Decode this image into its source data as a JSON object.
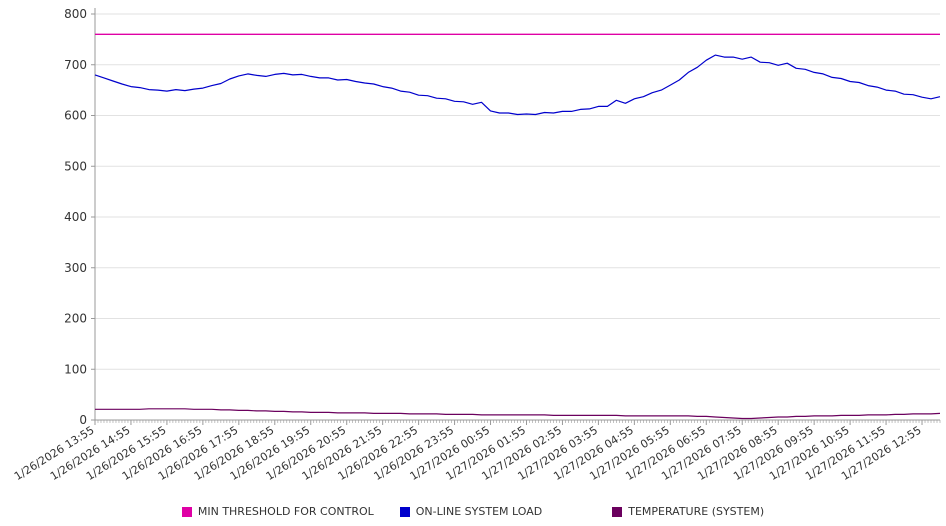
{
  "theme": {
    "background": "#ffffff",
    "grid_color": "#e2e2e2",
    "axis_color": "#999999",
    "text_color": "#333333"
  },
  "chart_data": {
    "type": "line",
    "title": "",
    "xlabel": "",
    "ylabel": "",
    "ylim": [
      0,
      800
    ],
    "y_ticks": [
      0,
      100,
      200,
      300,
      400,
      500,
      600,
      700,
      800
    ],
    "grid": "horizontal",
    "legend_position": "bottom",
    "x_hours_span": 23.5,
    "x_step_hours": 0.25,
    "minor_ticks_per_hour": 12,
    "x_tick_labels": [
      "1/26/2026 13:55",
      "1/26/2026 14:55",
      "1/26/2026 15:55",
      "1/26/2026 16:55",
      "1/26/2026 17:55",
      "1/26/2026 18:55",
      "1/26/2026 19:55",
      "1/26/2026 20:55",
      "1/26/2026 21:55",
      "1/26/2026 22:55",
      "1/26/2026 23:55",
      "1/27/2026 00:55",
      "1/27/2026 01:55",
      "1/27/2026 02:55",
      "1/27/2026 03:55",
      "1/27/2026 04:55",
      "1/27/2026 05:55",
      "1/27/2026 06:55",
      "1/27/2026 07:55",
      "1/27/2026 08:55",
      "1/27/2026 09:55",
      "1/27/2026 10:55",
      "1/27/2026 11:55",
      "1/27/2026 12:55"
    ],
    "series": [
      {
        "name": "MIN THRESHOLD FOR CONTROL",
        "color": "#df00a5",
        "constant": 760
      },
      {
        "name": "ON-LINE SYSTEM LOAD",
        "color": "#0000cc",
        "values": [
          680,
          674,
          668,
          662,
          657,
          655,
          651,
          650,
          648,
          651,
          649,
          652,
          654,
          659,
          663,
          672,
          678,
          682,
          679,
          677,
          681,
          683,
          680,
          681,
          677,
          674,
          674,
          670,
          671,
          667,
          664,
          662,
          657,
          654,
          648,
          646,
          640,
          639,
          634,
          633,
          628,
          627,
          622,
          626,
          609,
          605,
          605,
          602,
          603,
          602,
          606,
          605,
          608,
          608,
          612,
          613,
          618,
          618,
          630,
          624,
          633,
          637,
          645,
          650,
          660,
          670,
          685,
          695,
          709,
          719,
          715,
          715,
          711,
          715,
          705,
          704,
          699,
          703,
          693,
          691,
          685,
          682,
          675,
          673,
          667,
          665,
          659,
          656,
          650,
          648,
          642,
          641,
          636,
          633,
          637
        ]
      },
      {
        "name": "TEMPERATURE (SYSTEM)",
        "color": "#6b005e",
        "values": [
          21,
          21,
          21,
          21,
          21,
          21,
          22,
          22,
          22,
          22,
          22,
          21,
          21,
          21,
          20,
          20,
          19,
          19,
          18,
          18,
          17,
          17,
          16,
          16,
          15,
          15,
          15,
          14,
          14,
          14,
          14,
          13,
          13,
          13,
          13,
          12,
          12,
          12,
          12,
          11,
          11,
          11,
          11,
          10,
          10,
          10,
          10,
          10,
          10,
          10,
          10,
          9,
          9,
          9,
          9,
          9,
          9,
          9,
          9,
          8,
          8,
          8,
          8,
          8,
          8,
          8,
          8,
          7,
          7,
          6,
          5,
          4,
          3,
          3,
          4,
          5,
          6,
          6,
          7,
          7,
          8,
          8,
          8,
          9,
          9,
          9,
          10,
          10,
          10,
          11,
          11,
          12,
          12,
          12,
          13
        ]
      }
    ]
  }
}
